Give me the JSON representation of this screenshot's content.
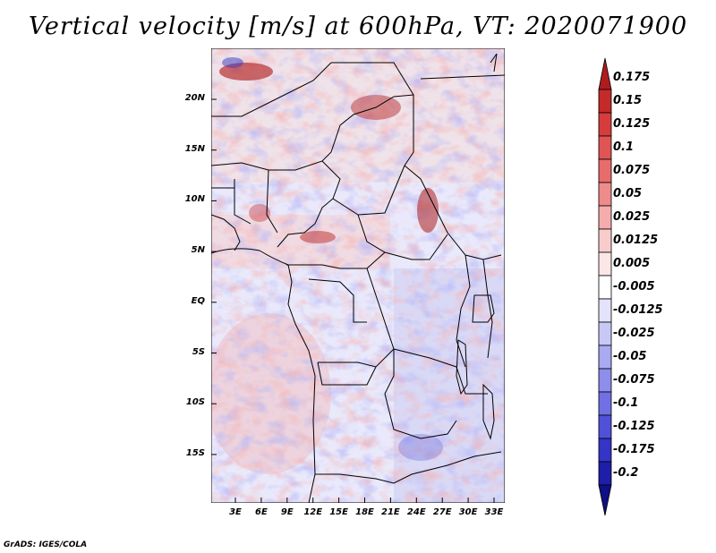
{
  "title": "Vertical velocity [m/s] at 600hPa, VT: 2020071900",
  "credit": "GrADS: IGES/COLA",
  "map": {
    "lat_labels": [
      "20N",
      "15N",
      "10N",
      "5N",
      "EQ",
      "5S",
      "10S",
      "15S"
    ],
    "lon_labels": [
      "3E",
      "6E",
      "9E",
      "12E",
      "15E",
      "18E",
      "21E",
      "24E",
      "27E",
      "30E",
      "33E"
    ]
  },
  "colorbar": {
    "labels": [
      "0.175",
      "0.15",
      "0.125",
      "0.1",
      "0.075",
      "0.05",
      "0.025",
      "0.0125",
      "0.005",
      "-0.005",
      "-0.0125",
      "-0.025",
      "-0.05",
      "-0.075",
      "-0.1",
      "-0.125",
      "-0.175",
      "-0.2"
    ],
    "colors": [
      "#b01c1c",
      "#c42a2a",
      "#d63c3c",
      "#e05454",
      "#e86c6c",
      "#ef8b8b",
      "#f5acac",
      "#f9cccc",
      "#fce6e6",
      "#ffffff",
      "#e3e3fb",
      "#c8c8f7",
      "#aaaaf2",
      "#8d8dec",
      "#7070e4",
      "#5050d8",
      "#3434c6",
      "#1e1ea8",
      "#0f0f86"
    ]
  }
}
